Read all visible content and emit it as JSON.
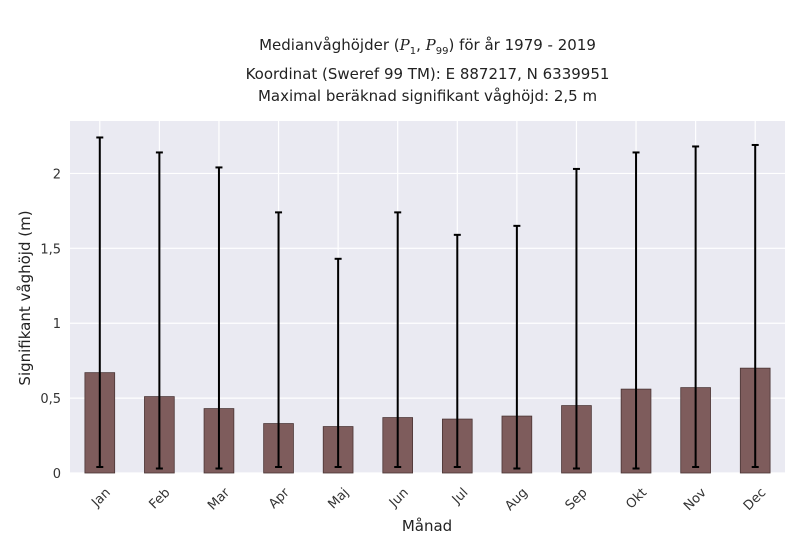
{
  "chart_data": {
    "type": "bar",
    "title": {
      "line1_prefix": "Medianvåghöjder (",
      "p_symbol": "P",
      "p1_sub": "1",
      "p99_sub": "99",
      "line1_suffix": ") för år 1979 - 2019",
      "line2": "Koordinat (Sweref 99 TM): E 887217, N 6339951",
      "line3": "Maximal beräknad signifikant våghöjd: 2,5 m"
    },
    "xlabel": "Månad",
    "ylabel": "Signifikant våghöjd (m)",
    "categories": [
      "Jan",
      "Feb",
      "Mar",
      "Apr",
      "Maj",
      "Jun",
      "Jul",
      "Aug",
      "Sep",
      "Okt",
      "Nov",
      "Dec"
    ],
    "values": [
      0.67,
      0.51,
      0.43,
      0.33,
      0.31,
      0.37,
      0.36,
      0.38,
      0.45,
      0.56,
      0.57,
      0.7
    ],
    "p1": [
      0.04,
      0.03,
      0.03,
      0.04,
      0.04,
      0.04,
      0.04,
      0.03,
      0.03,
      0.03,
      0.04,
      0.04
    ],
    "p99": [
      2.24,
      2.14,
      2.04,
      1.74,
      1.43,
      1.74,
      1.59,
      1.65,
      2.03,
      2.14,
      2.18,
      2.19
    ],
    "ylim": [
      0,
      2.35
    ],
    "yticks": [
      0,
      0.5,
      1,
      1.5,
      2
    ],
    "ytick_labels": [
      "0",
      "0,5",
      "1",
      "1,5",
      "2"
    ],
    "grid": true,
    "colors": {
      "bar": "#7e5c5c",
      "bar_edge": "#4a3434",
      "error_bar": "#000000",
      "plot_bg": "#eaeaf2",
      "grid": "#ffffff"
    }
  }
}
